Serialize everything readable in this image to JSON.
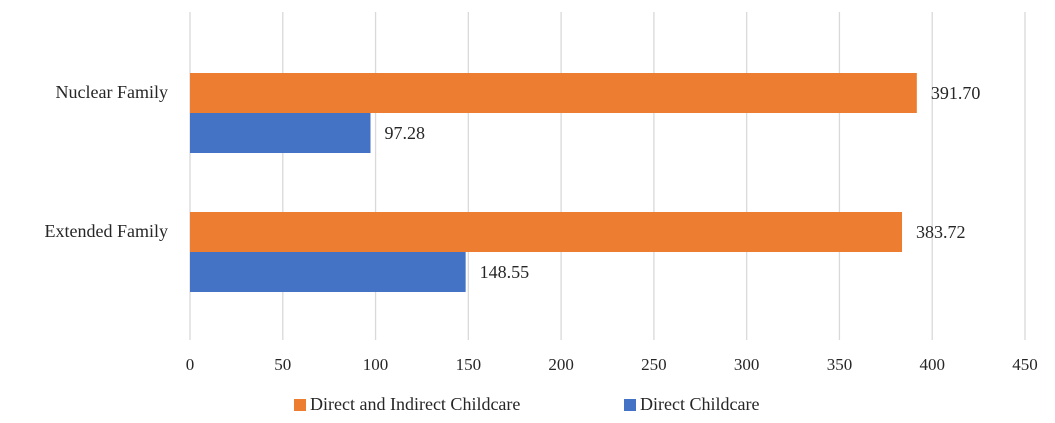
{
  "chart_data": {
    "type": "bar",
    "orientation": "horizontal",
    "title": "",
    "xlabel": "",
    "ylabel": "",
    "categories": [
      "Nuclear Family",
      "Extended Family"
    ],
    "series": [
      {
        "name": "Direct and Indirect Childcare",
        "values": [
          391.7,
          383.72
        ],
        "labels": [
          "391.70",
          "383.72"
        ],
        "color": "#ED7D31"
      },
      {
        "name": "Direct Childcare",
        "values": [
          97.28,
          148.55
        ],
        "labels": [
          "97.28",
          "148.55"
        ],
        "color": "#4472C4"
      }
    ],
    "xlim": [
      0,
      450
    ],
    "xticks": [
      0,
      50,
      100,
      150,
      200,
      250,
      300,
      350,
      400,
      450
    ],
    "xtick_labels": [
      "0",
      "50",
      "100",
      "150",
      "200",
      "250",
      "300",
      "350",
      "400",
      "450"
    ],
    "grid": "vertical",
    "legend_position": "bottom"
  }
}
